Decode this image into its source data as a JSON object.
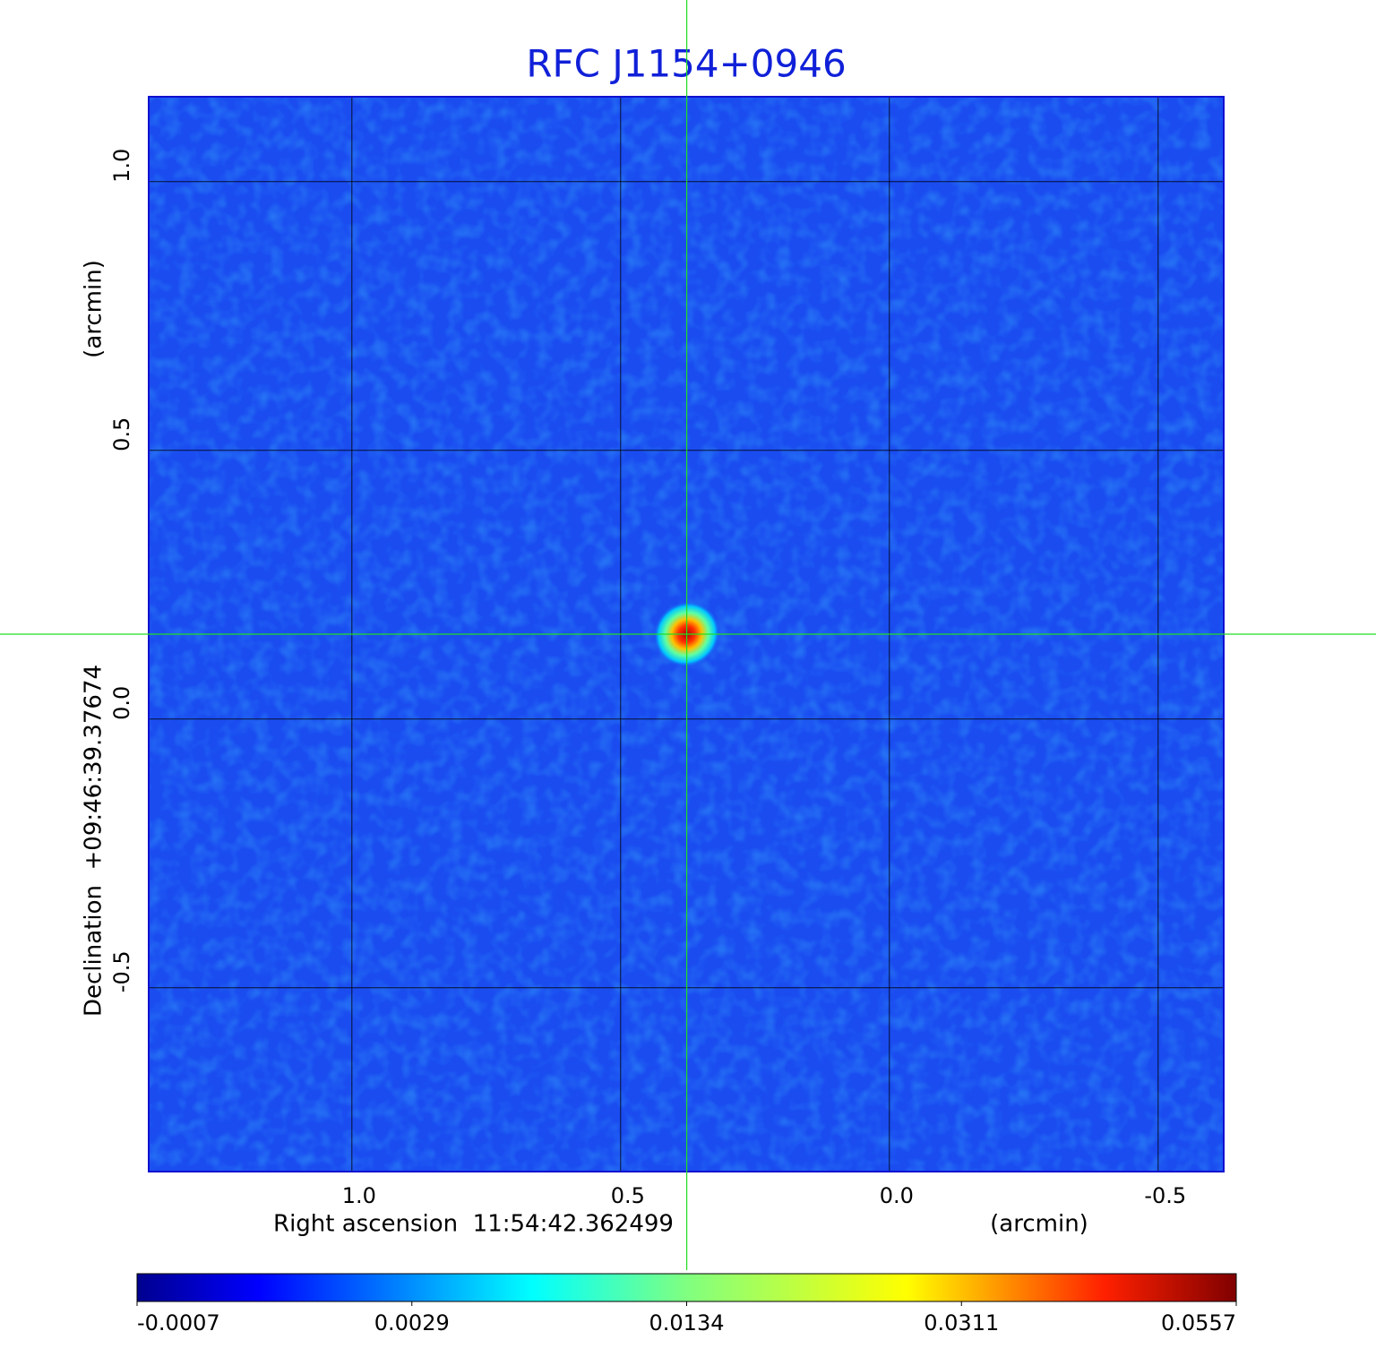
{
  "chart_data": {
    "type": "image",
    "title": "RFC J1154+0946",
    "x_label": "Right ascension  11:54:42.362499",
    "x_unit": "(arcmin)",
    "y_label": "Declination  +09:46:39.37674",
    "y_unit": "(arcmin)",
    "xlim": [
      1.378,
      -0.622
    ],
    "ylim": [
      -0.842,
      1.158
    ],
    "xticks": [
      {
        "value": 1,
        "label": "1.0"
      },
      0.5,
      {
        "value": 0,
        "label": "0.0"
      },
      -0.5
    ],
    "yticks": [
      {
        "value": 1,
        "label": "1.0"
      },
      0.5,
      {
        "value": 0,
        "label": "0.0"
      },
      -0.5
    ],
    "grid": true,
    "crosshair": {
      "x": 0.377,
      "y": 0.158,
      "color": "#22dd22"
    },
    "colorbar": {
      "colormap": "jet",
      "ticks": [
        -0.0007,
        0.0029,
        0.0134,
        0.0311,
        0.0557
      ]
    }
  }
}
